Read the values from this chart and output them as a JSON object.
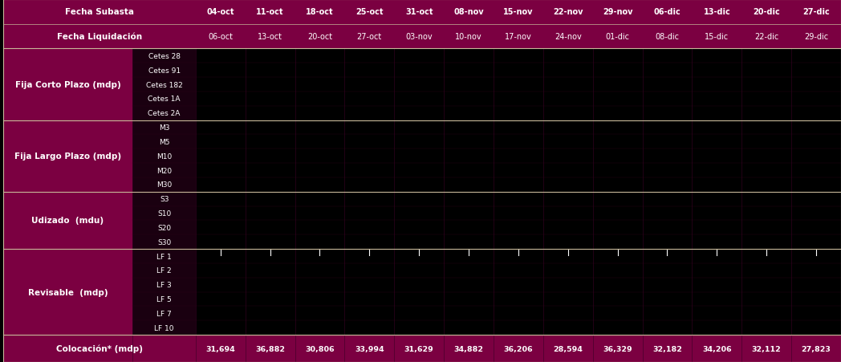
{
  "header_bg": "#7B0041",
  "header_text": "#FFFFFF",
  "subheader_bg": "#7B0041",
  "row_label_bg": "#7B0041",
  "row_label_text": "#FFFFFF",
  "subrow_bg": "#1A0010",
  "subrow_text": "#FFFFFF",
  "data_bg": "#000000",
  "data_text": "#FFFFFF",
  "footer_bg": "#7B0041",
  "footer_text": "#FFFFFF",
  "separator_color": "#C8B89A",
  "tick_color": "#FFFFFF",
  "fecha_subasta": [
    "04-oct",
    "11-oct",
    "18-oct",
    "25-oct",
    "31-oct",
    "08-nov",
    "15-nov",
    "22-nov",
    "29-nov",
    "06-dic",
    "13-dic",
    "20-dic",
    "27-dic"
  ],
  "fecha_liquidacion": [
    "06-oct",
    "13-oct",
    "20-oct",
    "27-oct",
    "03-nov",
    "10-nov",
    "17-nov",
    "24-nov",
    "01-dic",
    "08-dic",
    "15-dic",
    "22-dic",
    "29-dic"
  ],
  "row_groups": [
    {
      "label": "Fija Corto Plazo (mdp)",
      "subrows": [
        "Cetes 28",
        "Cetes 91",
        "Cetes 182",
        "Cetes 1A",
        "Cetes 2A"
      ]
    },
    {
      "label": "Fija Largo Plazo (mdp)",
      "subrows": [
        "M3",
        "M5",
        "M10",
        "M20",
        "M30"
      ]
    },
    {
      "label": "Udizado  (mdu)",
      "subrows": [
        "S3",
        "S10",
        "S20",
        "S30"
      ]
    },
    {
      "label": "Revisable  (mdp)",
      "subrows": [
        "LF 1",
        "LF 2",
        "LF 3",
        "LF 5",
        "LF 7",
        "LF 10"
      ]
    }
  ],
  "colocacion_label": "Colocación* (mdp)",
  "colocacion_values": [
    "31,694",
    "36,882",
    "30,806",
    "33,994",
    "31,629",
    "34,882",
    "36,206",
    "28,594",
    "36,329",
    "32,182",
    "34,206",
    "32,112",
    "27,823"
  ],
  "revisable_ticks": [
    0,
    1,
    2,
    3,
    4,
    5,
    6,
    7,
    8,
    9,
    10,
    11,
    12
  ]
}
